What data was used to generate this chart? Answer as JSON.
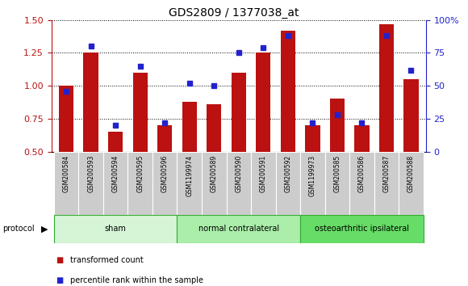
{
  "title": "GDS2809 / 1377038_at",
  "samples": [
    "GSM200584",
    "GSM200593",
    "GSM200594",
    "GSM200595",
    "GSM200596",
    "GSM1199974",
    "GSM200589",
    "GSM200590",
    "GSM200591",
    "GSM200592",
    "GSM1199973",
    "GSM200585",
    "GSM200586",
    "GSM200587",
    "GSM200588"
  ],
  "red_values": [
    1.0,
    1.25,
    0.65,
    1.1,
    0.7,
    0.88,
    0.86,
    1.1,
    1.25,
    1.42,
    0.7,
    0.9,
    0.7,
    1.47,
    1.05
  ],
  "blue_pct": [
    46,
    80,
    20,
    65,
    22,
    52,
    50,
    75,
    79,
    88,
    22,
    28,
    22,
    88,
    62
  ],
  "groups": [
    {
      "label": "sham",
      "start": 0,
      "end": 5,
      "color": "#d6f5d6"
    },
    {
      "label": "normal contralateral",
      "start": 5,
      "end": 10,
      "color": "#aaeeaa"
    },
    {
      "label": "osteoarthritic ipsilateral",
      "start": 10,
      "end": 15,
      "color": "#66dd66"
    }
  ],
  "ylim_left": [
    0.5,
    1.5
  ],
  "ylim_right": [
    0,
    100
  ],
  "yticks_left": [
    0.5,
    0.75,
    1.0,
    1.25,
    1.5
  ],
  "yticks_right": [
    0,
    25,
    50,
    75,
    100
  ],
  "ytick_labels_right": [
    "0",
    "25",
    "50",
    "75",
    "100%"
  ],
  "red_color": "#bb1111",
  "blue_color": "#2222cc",
  "bar_width": 0.6,
  "tick_area_color": "#cccccc",
  "legend_red": "transformed count",
  "legend_blue": "percentile rank within the sample"
}
